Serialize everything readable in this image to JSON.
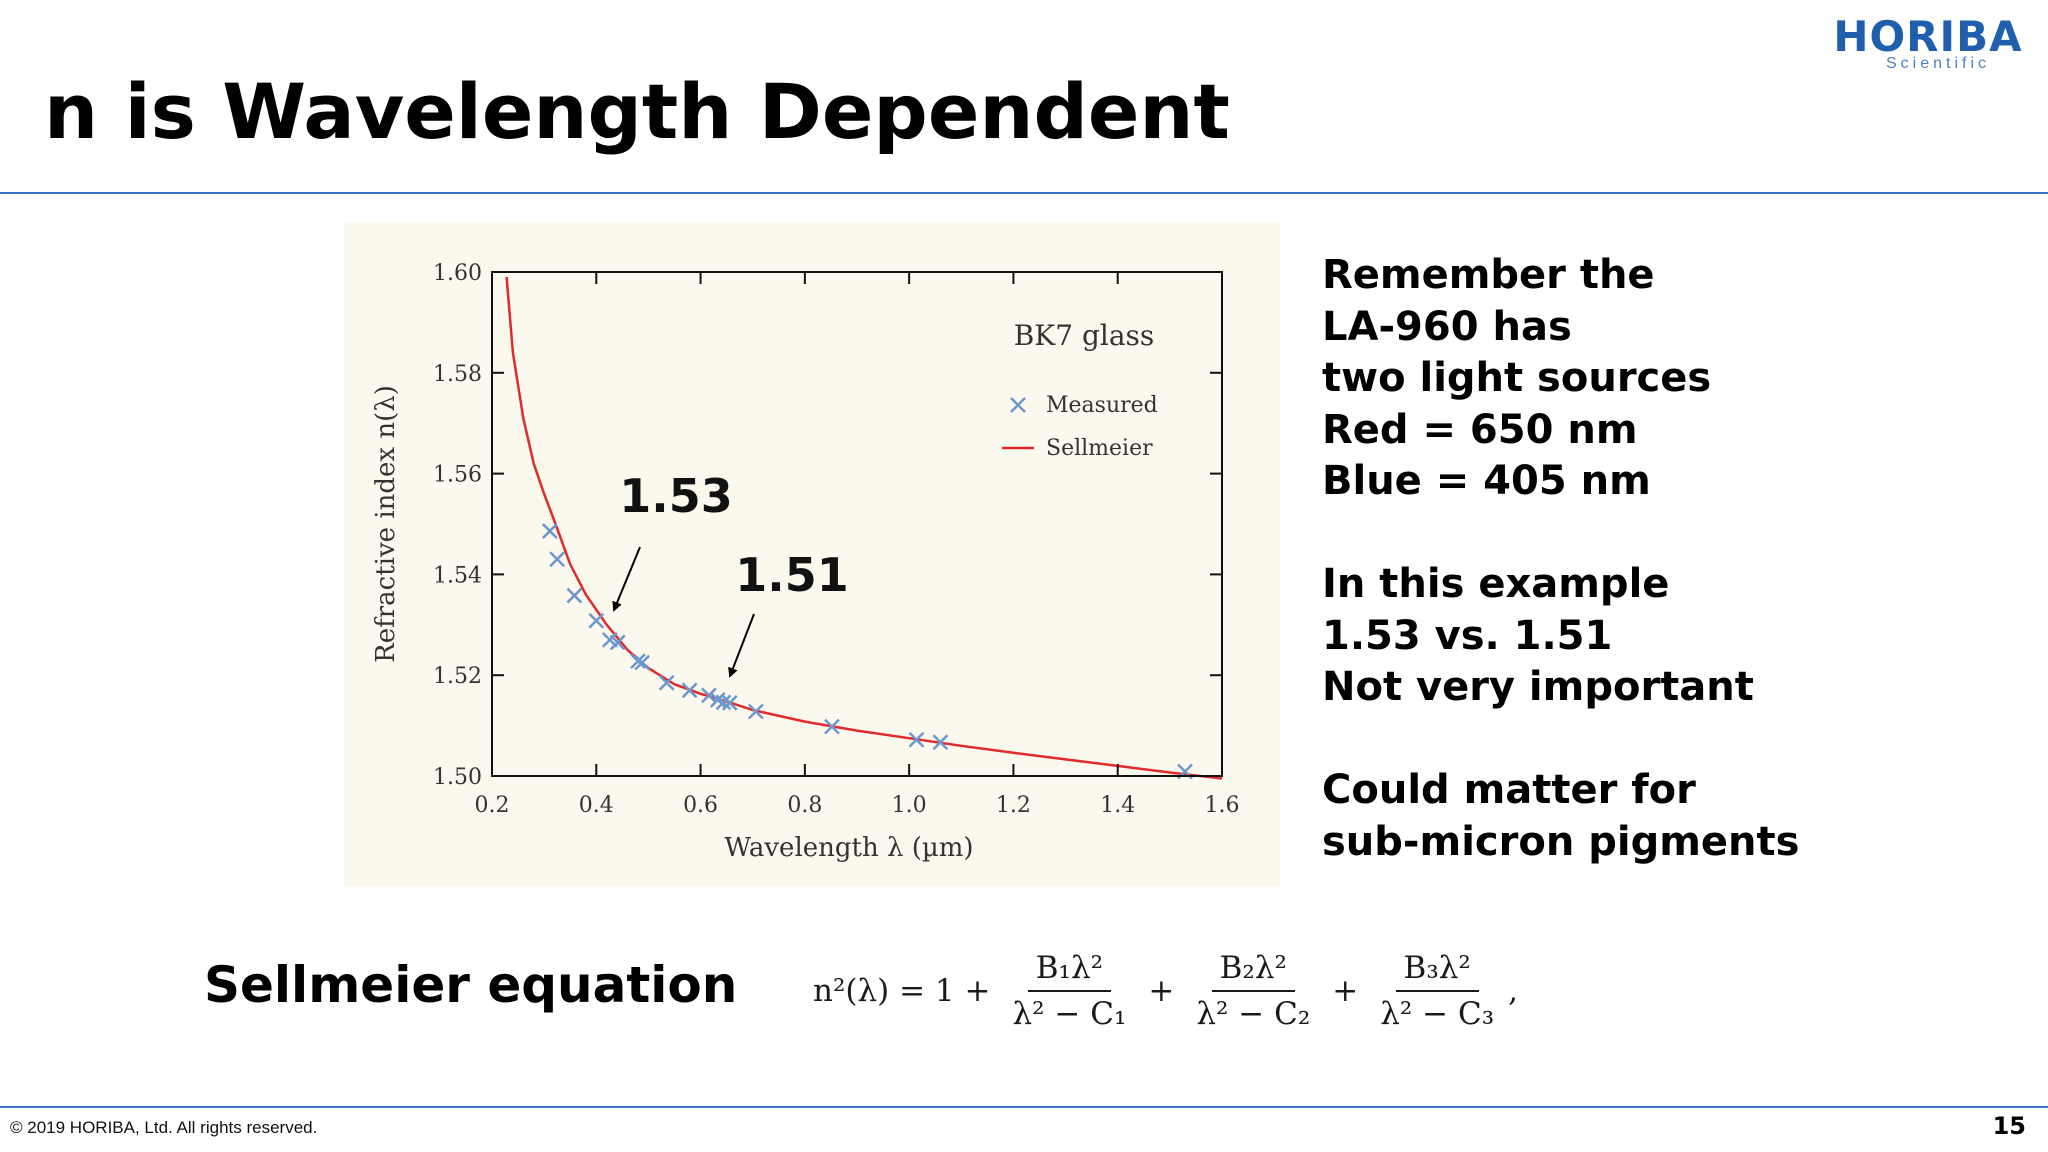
{
  "header": {
    "title": "n is Wavelength Dependent",
    "logo_main": "HORIBA",
    "logo_sub": "Scientific"
  },
  "colors": {
    "brand_blue": "#1f5fae",
    "rule_blue": "#3d72c9",
    "measured_marker": "#6d98cf",
    "sellmeier_curve": "#e12a2a",
    "chart_background": "#fbf8ee"
  },
  "chart_data": {
    "type": "scatter",
    "title": "BK7 glass",
    "xlabel": "Wavelength λ (µm)",
    "ylabel": "Refractive index n(λ)",
    "xlim": [
      0.2,
      1.6
    ],
    "ylim": [
      1.5,
      1.6
    ],
    "x_ticks": [
      "0.2",
      "0.4",
      "0.6",
      "0.8",
      "1.0",
      "1.2",
      "1.4",
      "1.6"
    ],
    "y_ticks": [
      "1.50",
      "1.52",
      "1.54",
      "1.56",
      "1.58",
      "1.60"
    ],
    "grid": false,
    "legend_position": "top-right",
    "series": [
      {
        "name": "Measured",
        "kind": "scatter",
        "marker": "x",
        "x": [
          0.311,
          0.325,
          0.358,
          0.4,
          0.426,
          0.441,
          0.48,
          0.488,
          0.535,
          0.579,
          0.616,
          0.633,
          0.644,
          0.656,
          0.706,
          0.852,
          1.014,
          1.06,
          1.529
        ],
        "y": [
          1.5486,
          1.543,
          1.5358,
          1.5308,
          1.527,
          1.5265,
          1.5228,
          1.5225,
          1.5185,
          1.517,
          1.516,
          1.5151,
          1.5146,
          1.5145,
          1.5128,
          1.5098,
          1.5072,
          1.5067,
          1.5009
        ]
      },
      {
        "name": "Sellmeier",
        "kind": "line",
        "x": [
          0.228,
          0.24,
          0.26,
          0.28,
          0.3,
          0.32,
          0.35,
          0.38,
          0.42,
          0.46,
          0.5,
          0.55,
          0.6,
          0.65,
          0.7,
          0.8,
          0.9,
          1.0,
          1.1,
          1.2,
          1.3,
          1.4,
          1.5,
          1.6
        ],
        "y": [
          1.599,
          1.584,
          1.571,
          1.562,
          1.556,
          1.5505,
          1.542,
          1.536,
          1.53,
          1.525,
          1.5214,
          1.5182,
          1.5163,
          1.5148,
          1.5131,
          1.5108,
          1.509,
          1.5075,
          1.506,
          1.5046,
          1.5033,
          1.502,
          1.5007,
          1.4995
        ]
      }
    ],
    "annotations": [
      {
        "text": "1.53",
        "x": 0.43,
        "y": 1.53
      },
      {
        "text": "1.51",
        "x": 0.65,
        "y": 1.5145
      }
    ]
  },
  "notes": {
    "lines": [
      "Remember the",
      "LA-960 has",
      "two light sources",
      "Red = 650 nm",
      "Blue = 405 nm",
      "",
      "In this example",
      "1.53 vs. 1.51",
      "Not very important",
      "",
      "Could matter for",
      "sub-micron pigments"
    ]
  },
  "equation": {
    "label": "Sellmeier equation",
    "lhs": "n²(λ) = 1 +",
    "plus": "+",
    "terms": [
      {
        "num": "B₁λ²",
        "den": "λ² − C₁"
      },
      {
        "num": "B₂λ²",
        "den": "λ² − C₂"
      },
      {
        "num": "B₃λ²",
        "den": "λ² − C₃"
      }
    ],
    "end": ","
  },
  "footer": {
    "copyright": "© 2019 HORIBA, Ltd. All rights reserved.",
    "page_number": "15"
  }
}
